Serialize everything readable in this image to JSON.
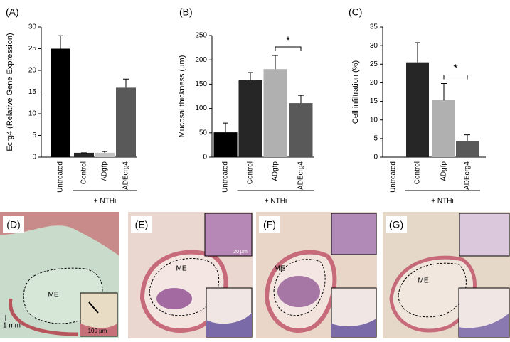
{
  "chart_data": [
    {
      "type": "bar",
      "panel": "(A)",
      "y_label": "Ecrg4  (Relative Gene Expression)",
      "categories": [
        "Untreated",
        "Control",
        "ADgfp",
        "ADEcrg4"
      ],
      "values": [
        25,
        1,
        1,
        16
      ],
      "errors": [
        3,
        0,
        0.3,
        2
      ],
      "colors": [
        "#000000",
        "#262626",
        "#c4c4c4",
        "#595959"
      ],
      "ylim": [
        0,
        30
      ],
      "yticks": [
        0,
        5,
        10,
        15,
        20,
        25,
        30
      ],
      "group_label": "+ NTHi"
    },
    {
      "type": "bar",
      "panel": "(B)",
      "y_label": "Mucosal thickness (μm)",
      "categories": [
        "Untreated",
        "Control",
        "ADgfp",
        "ADEcrg4"
      ],
      "values": [
        51,
        158,
        181,
        111
      ],
      "errors": [
        19,
        16,
        28,
        16
      ],
      "colors": [
        "#000000",
        "#262626",
        "#b0b0b0",
        "#595959"
      ],
      "ylim": [
        0,
        250
      ],
      "yticks": [
        0,
        50,
        100,
        150,
        200,
        250
      ],
      "group_label": "+ NTHi",
      "annotation": "*"
    },
    {
      "type": "bar",
      "panel": "(C)",
      "y_label": "Cell infiltration (%)",
      "categories": [
        "Untreated",
        "Control",
        "ADgfp",
        "ADEcrg4"
      ],
      "values": [
        0,
        25.5,
        15.3,
        4.3
      ],
      "errors": [
        0,
        5.3,
        4.5,
        1.7
      ],
      "colors": [
        "#000000",
        "#262626",
        "#b0b0b0",
        "#595959"
      ],
      "ylim": [
        0,
        35
      ],
      "yticks": [
        0,
        5,
        10,
        15,
        20,
        25,
        30,
        35
      ],
      "group_label": "+ NTHi",
      "annotation": "*"
    }
  ],
  "panels": [
    {
      "label": "(D)",
      "region": "ME",
      "scale_bar": "1 mm",
      "inset_scale_bar": "100 µm"
    },
    {
      "label": "(E)",
      "region": "ME",
      "inset_scale_bar": "20 µm"
    },
    {
      "label": "(F)",
      "region": "ME"
    },
    {
      "label": "(G)",
      "region": "ME"
    }
  ]
}
